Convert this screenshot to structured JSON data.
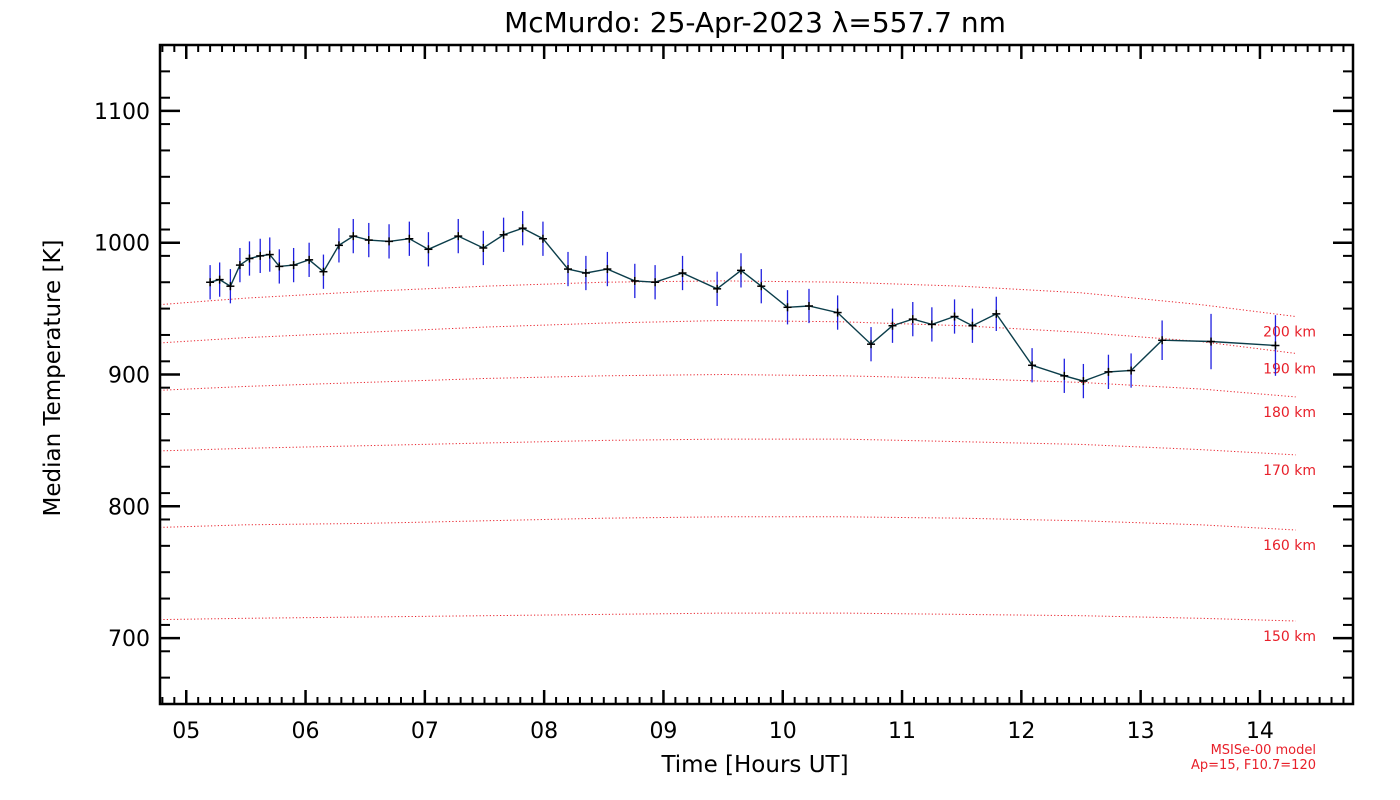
{
  "chart_data": {
    "type": "line",
    "title": "McMurdo: 25-Apr-2023 λ=557.7 nm",
    "xlabel": "Time [Hours UT]",
    "ylabel": "Median Temperature [K]",
    "xlim": [
      4.78,
      14.78
    ],
    "ylim": [
      650,
      1150
    ],
    "x_ticks": [
      5,
      6,
      7,
      8,
      9,
      10,
      11,
      12,
      13,
      14
    ],
    "x_tick_labels": [
      "05",
      "06",
      "07",
      "08",
      "09",
      "10",
      "11",
      "12",
      "13",
      "14"
    ],
    "y_ticks": [
      700,
      800,
      900,
      1000,
      1100
    ],
    "y_tick_labels": [
      "700",
      "800",
      "900",
      "1000",
      "1100"
    ],
    "grid": false,
    "series": [
      {
        "type": "line-errorbars",
        "color": "#000000",
        "line_color": "#0b3d4a",
        "error_color": "#2020e0",
        "x": [
          5.2,
          5.28,
          5.37,
          5.45,
          5.53,
          5.62,
          5.7,
          5.78,
          5.9,
          6.03,
          6.15,
          6.28,
          6.4,
          6.53,
          6.7,
          6.87,
          7.03,
          7.28,
          7.49,
          7.66,
          7.82,
          7.99,
          8.2,
          8.35,
          8.53,
          8.76,
          8.93,
          9.16,
          9.45,
          9.65,
          9.82,
          10.04,
          10.22,
          10.46,
          10.74,
          10.92,
          11.09,
          11.25,
          11.44,
          11.59,
          11.79,
          12.09,
          12.36,
          12.52,
          12.73,
          12.92,
          13.18,
          13.59,
          14.13
        ],
        "y": [
          970,
          972,
          967,
          983,
          988,
          990,
          991,
          982,
          983,
          987,
          978,
          998,
          1005,
          1002,
          1001,
          1003,
          995,
          1005,
          996,
          1006,
          1011,
          1003,
          980,
          977,
          980,
          971,
          970,
          977,
          965,
          979,
          967,
          951,
          952,
          947,
          923,
          937,
          942,
          938,
          944,
          937,
          946,
          907,
          899,
          895,
          902,
          903,
          926,
          925,
          922
        ],
        "err": [
          13,
          13,
          13,
          13,
          13,
          13,
          13,
          13,
          13,
          13,
          13,
          13,
          13,
          13,
          13,
          13,
          13,
          13,
          13,
          13,
          13,
          13,
          13,
          13,
          13,
          13,
          13,
          13,
          13,
          13,
          13,
          13,
          13,
          13,
          13,
          13,
          13,
          13,
          13,
          13,
          13,
          13,
          13,
          13,
          13,
          13,
          15,
          21,
          23
        ]
      }
    ],
    "model_curves": {
      "color": "#e8202a",
      "style": "dotted",
      "x": [
        4.78,
        5.5,
        6.5,
        7.5,
        8.5,
        9.5,
        10.5,
        11.5,
        12.5,
        13.5,
        14.3
      ],
      "curves": [
        {
          "label": "200 km",
          "y": [
            953,
            958,
            963,
            967,
            970,
            971,
            970,
            967,
            962,
            953,
            944
          ]
        },
        {
          "label": "190 km",
          "y": [
            924,
            928,
            932,
            936,
            939,
            941,
            940,
            937,
            932,
            925,
            916
          ]
        },
        {
          "label": "180 km",
          "y": [
            888,
            891,
            894,
            897,
            899,
            900,
            899,
            897,
            894,
            889,
            883
          ]
        },
        {
          "label": "170 km",
          "y": [
            842,
            844,
            846,
            848,
            850,
            851,
            851,
            849,
            847,
            843,
            839
          ]
        },
        {
          "label": "160 km",
          "y": [
            784,
            786,
            787,
            789,
            791,
            792,
            792,
            791,
            789,
            786,
            782
          ]
        },
        {
          "label": "150 km",
          "y": [
            714,
            715,
            716,
            717,
            718,
            719,
            719,
            718,
            717,
            715,
            713
          ]
        }
      ],
      "note_line1": "MSISe-00 model",
      "note_line2": "Ap=15, F10.7=120"
    }
  }
}
